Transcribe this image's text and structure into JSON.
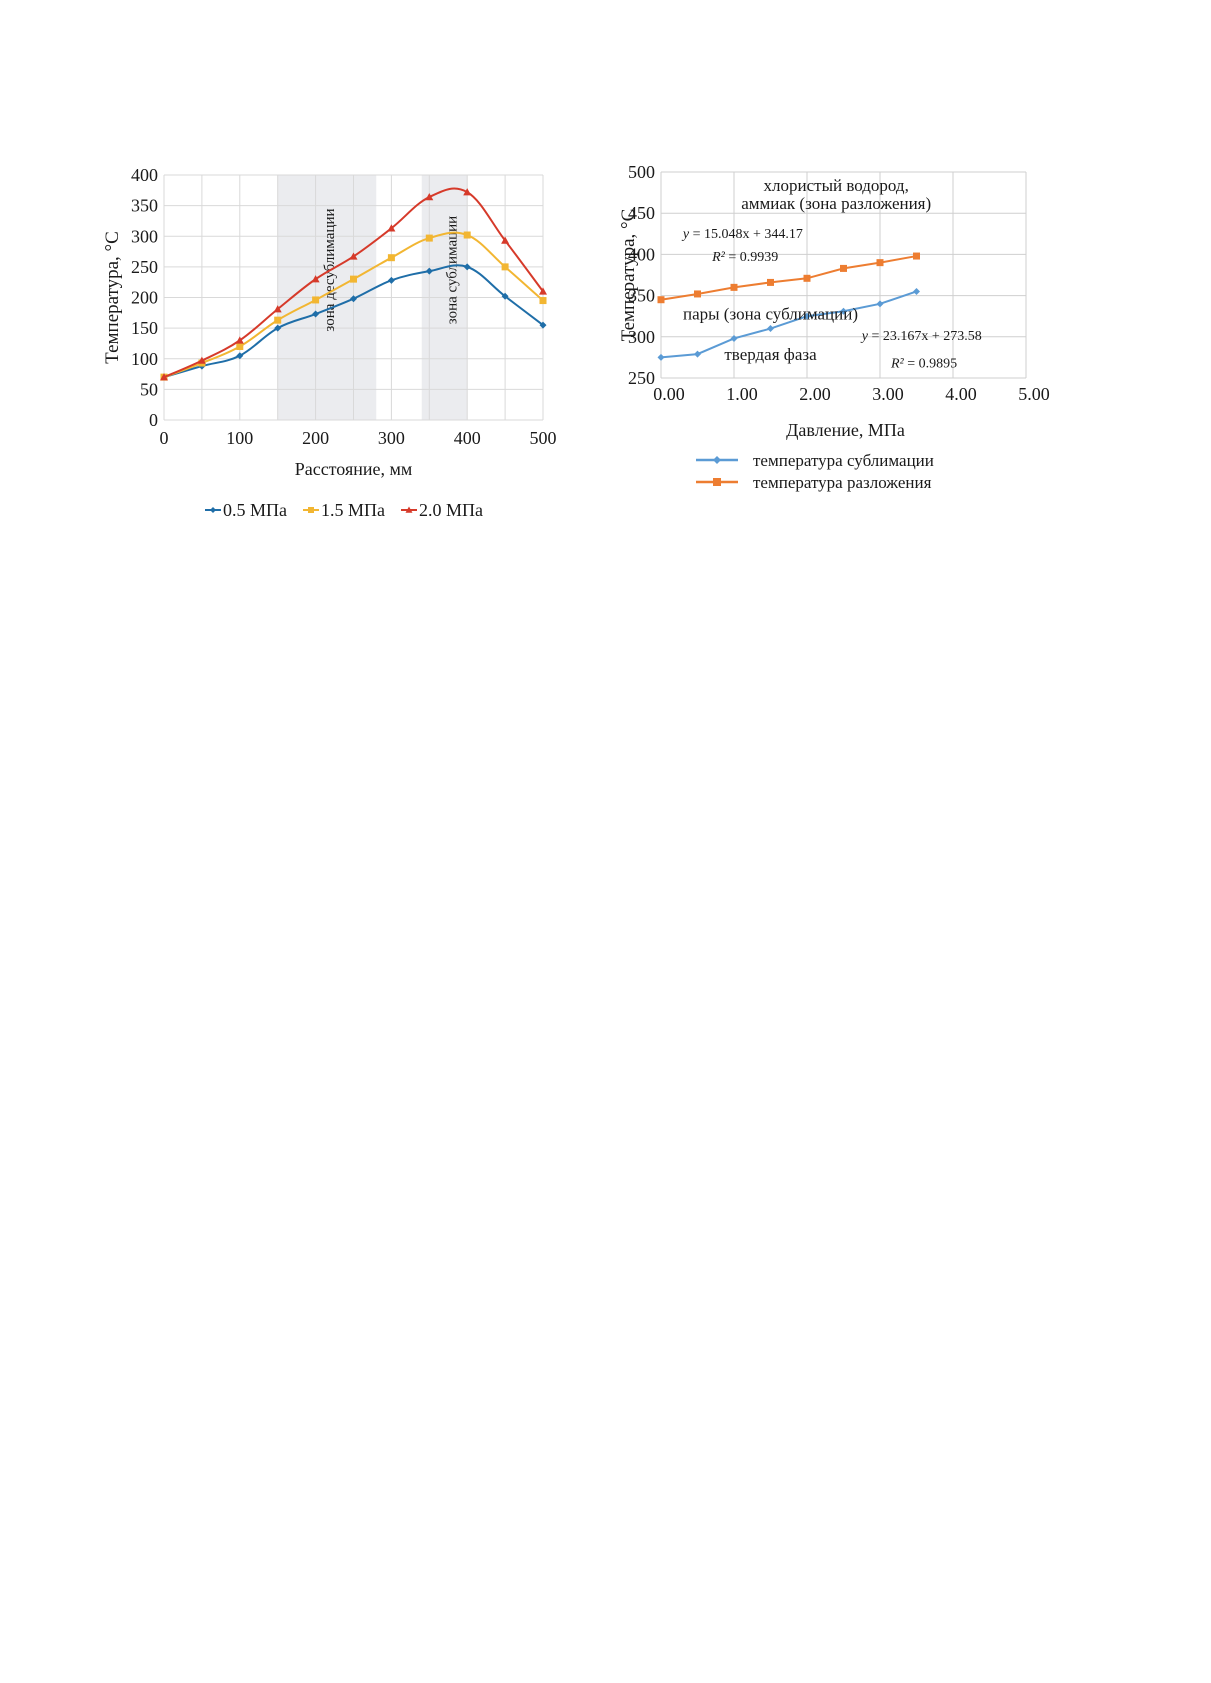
{
  "charts": [
    {
      "type": "line",
      "xlabel": "Расстояние, мм",
      "ylabel": "Температура, °С",
      "xlim": [
        0,
        500
      ],
      "ylim": [
        0,
        400
      ],
      "xticks": [
        "0",
        "100",
        "200",
        "300",
        "400",
        "500"
      ],
      "yticks": [
        "0",
        "50",
        "100",
        "150",
        "200",
        "250",
        "300",
        "350",
        "400"
      ],
      "grid": true,
      "legend_position": "bottom",
      "shaded_zones": [
        {
          "label": "зона десублимации",
          "x_range": [
            150,
            280
          ]
        },
        {
          "label": "зона сублимации",
          "x_range": [
            340,
            400
          ]
        }
      ],
      "series": [
        {
          "name": "0.5 МПа",
          "color": "#1f6ea8",
          "marker": "diamond",
          "x": [
            0,
            50,
            100,
            150,
            200,
            250,
            300,
            350,
            400,
            450,
            500
          ],
          "y": [
            70,
            88,
            105,
            150,
            173,
            198,
            228,
            243,
            250,
            202,
            155
          ]
        },
        {
          "name": "1.5 МПа",
          "color": "#f2b632",
          "marker": "square",
          "x": [
            0,
            50,
            100,
            150,
            200,
            250,
            300,
            350,
            400,
            450,
            500
          ],
          "y": [
            70,
            93,
            120,
            163,
            196,
            230,
            265,
            297,
            302,
            250,
            195
          ]
        },
        {
          "name": "2.0 МПа",
          "color": "#d63a2a",
          "marker": "triangle",
          "x": [
            0,
            50,
            100,
            150,
            200,
            250,
            300,
            350,
            400,
            450,
            500
          ],
          "y": [
            70,
            97,
            130,
            181,
            230,
            267,
            313,
            364,
            372,
            293,
            210
          ]
        }
      ]
    },
    {
      "type": "line",
      "xlabel": "Давление,  МПа",
      "ylabel": "Температура, °С",
      "xlim": [
        0,
        5
      ],
      "ylim": [
        250,
        500
      ],
      "xticks": [
        "0.00",
        "1.00",
        "2.00",
        "3.00",
        "4.00",
        "5.00"
      ],
      "yticks": [
        "250",
        "300",
        "350",
        "400",
        "450",
        "500"
      ],
      "grid": true,
      "legend_position": "bottom",
      "annotations": [
        {
          "text": "хлористый водород,",
          "x": 2.4,
          "y": 477
        },
        {
          "text": "аммиак (зона разложения)",
          "x": 2.4,
          "y": 455
        },
        {
          "text": "пары (зона сублимации)",
          "x": 1.5,
          "y": 321
        },
        {
          "text": "твердая фаза",
          "x": 1.5,
          "y": 272
        }
      ],
      "equations": [
        {
          "eq_prefix": "y",
          "eq_rest": " = 15.048x + 344.17",
          "r2_prefix": "R²",
          "r2_rest": " = 0.9939",
          "eq_pos": [
            0.3,
            420
          ],
          "r2_pos": [
            0.7,
            392
          ]
        },
        {
          "eq_prefix": "y",
          "eq_rest": " = 23.167x + 273.58",
          "r2_prefix": "R²",
          "r2_rest": " = 0.9895",
          "eq_pos": [
            2.75,
            296
          ],
          "r2_pos": [
            3.15,
            263
          ]
        }
      ],
      "series": [
        {
          "name": "температура  сублимации",
          "color": "#5b9bd5",
          "marker": "diamond",
          "x": [
            0,
            0.5,
            1.0,
            1.5,
            2.0,
            2.5,
            3.0,
            3.5
          ],
          "y": [
            275,
            279,
            298,
            310,
            325,
            331,
            340,
            355
          ]
        },
        {
          "name": "температура  разложения",
          "color": "#ed7d31",
          "marker": "square",
          "x": [
            0,
            0.5,
            1.0,
            1.5,
            2.0,
            2.5,
            3.0,
            3.5
          ],
          "y": [
            345,
            352,
            360,
            366,
            371,
            383,
            390,
            398
          ]
        }
      ]
    }
  ]
}
